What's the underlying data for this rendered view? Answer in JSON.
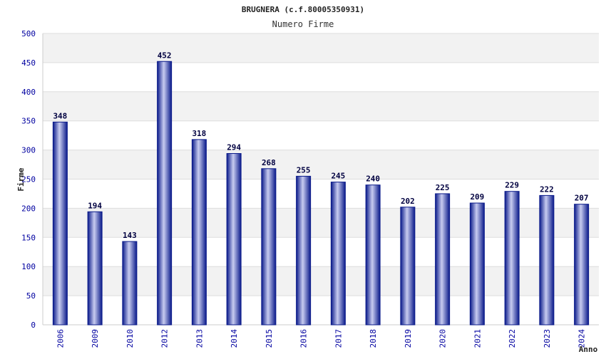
{
  "chart_data": {
    "type": "bar",
    "title": "BRUGNERA (c.f.80005350931)",
    "subtitle": "Numero Firme",
    "xlabel": "Anno",
    "ylabel": "Firme",
    "categories": [
      "2006",
      "2009",
      "2010",
      "2012",
      "2013",
      "2014",
      "2015",
      "2016",
      "2017",
      "2018",
      "2019",
      "2020",
      "2021",
      "2022",
      "2023",
      "2024"
    ],
    "values": [
      348,
      194,
      143,
      452,
      318,
      294,
      268,
      255,
      245,
      240,
      202,
      225,
      209,
      229,
      222,
      207
    ],
    "ylim": [
      0,
      500
    ],
    "yticks": [
      0,
      50,
      100,
      150,
      200,
      250,
      300,
      350,
      400,
      450,
      500
    ],
    "grid": true,
    "colors": {
      "bar_dark": "#0a1a8a",
      "bar_mid": "#5a68c0",
      "bar_light": "#c8ccf0",
      "tick_label": "#0000a0",
      "value_label": "#000040",
      "band": "#f2f2f2",
      "grid": "#dddddd"
    }
  }
}
